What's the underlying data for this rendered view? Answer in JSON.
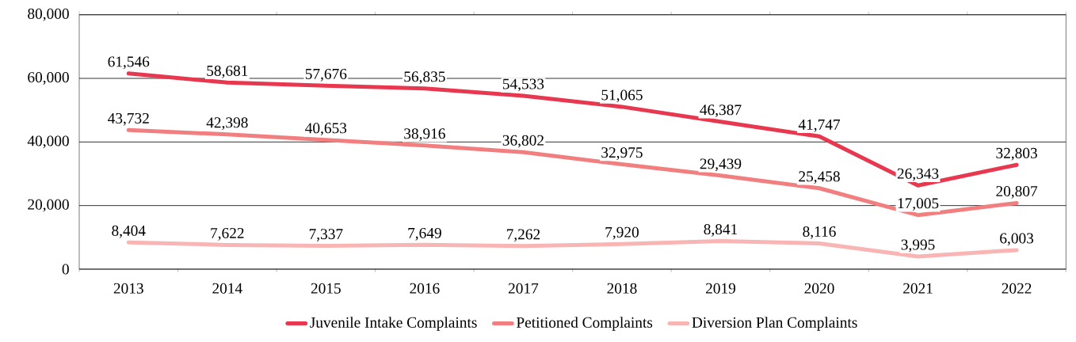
{
  "chart_data": {
    "type": "line",
    "categories": [
      "2013",
      "2014",
      "2015",
      "2016",
      "2017",
      "2018",
      "2019",
      "2020",
      "2021",
      "2022"
    ],
    "series": [
      {
        "name": "Juvenile Intake Complaints",
        "color": "#e8384f",
        "values": [
          61546,
          58681,
          57676,
          56835,
          54533,
          51065,
          46387,
          41747,
          26343,
          32803
        ],
        "value_labels": [
          "61,546",
          "58,681",
          "57,676",
          "56,835",
          "54,533",
          "51,065",
          "46,387",
          "41,747",
          "26,343",
          "32,803"
        ]
      },
      {
        "name": "Petitioned Complaints",
        "color": "#f27f80",
        "values": [
          43732,
          42398,
          40653,
          38916,
          36802,
          32975,
          29439,
          25458,
          17005,
          20807
        ],
        "value_labels": [
          "43,732",
          "42,398",
          "40,653",
          "38,916",
          "36,802",
          "32,975",
          "29,439",
          "25,458",
          "17,005",
          "20,807"
        ]
      },
      {
        "name": "Diversion Plan Complaints",
        "color": "#f8b5b3",
        "values": [
          8404,
          7622,
          7337,
          7649,
          7262,
          7920,
          8841,
          8116,
          3995,
          6003
        ],
        "value_labels": [
          "8,404",
          "7,622",
          "7,337",
          "7,649",
          "7,262",
          "7,920",
          "8,841",
          "8,116",
          "3,995",
          "6,003"
        ]
      }
    ],
    "ylim": [
      0,
      80000
    ],
    "yticks": [
      0,
      {
        "value": 20000,
        "label": "20,000"
      },
      {
        "value": 40000,
        "label": "40,000"
      },
      {
        "value": 60000,
        "label": "60,000"
      },
      {
        "value": 80000,
        "label": "80,000"
      }
    ],
    "grid": "y",
    "legend": "bottom",
    "marker": "none",
    "line_style": "solid"
  }
}
